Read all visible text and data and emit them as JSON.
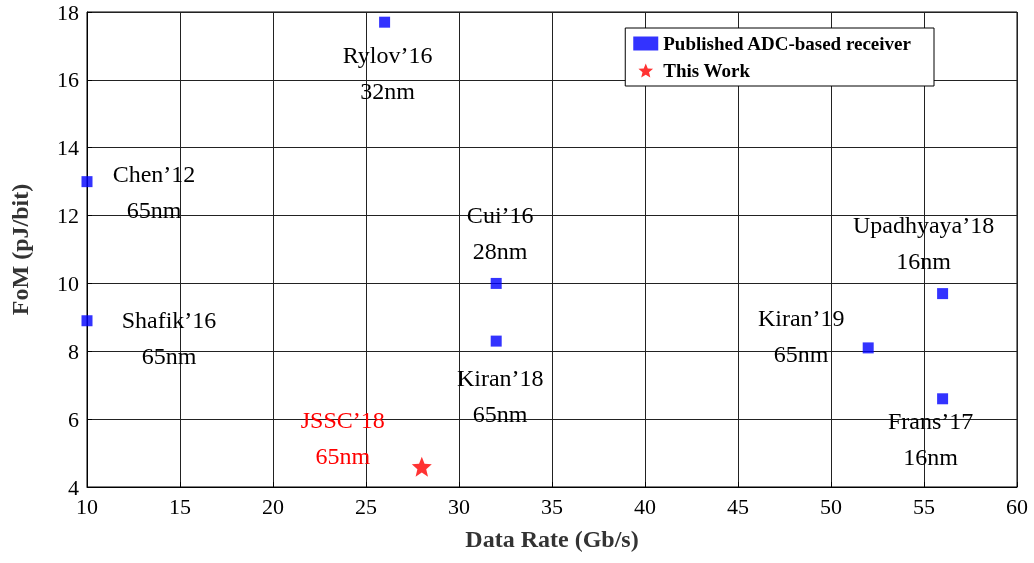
{
  "chart_data": {
    "type": "scatter",
    "xlabel": "Data Rate (Gb/s)",
    "ylabel": "FoM (pJ/bit)",
    "series": [
      {
        "name": "Published ADC-based receiver",
        "color": "#0000ff",
        "marker": "square",
        "x": [
          10,
          10,
          26,
          32,
          32,
          52,
          56,
          56
        ],
        "values": [
          13,
          8.9,
          17.7,
          10,
          8.3,
          8.1,
          9.7,
          6.6
        ]
      },
      {
        "name": "This Work",
        "color": "#ff0000",
        "marker": "star",
        "x": [
          28
        ],
        "values": [
          4.6
        ]
      }
    ],
    "annotations": [
      {
        "text": "Chen’12\n65nm",
        "x": 10,
        "y": 13
      },
      {
        "text": "Shafik’16\n65nm",
        "x": 10,
        "y": 8.9
      },
      {
        "text": "Rylov’16\n32nm",
        "x": 26,
        "y": 17.7
      },
      {
        "text": "Cui’16\n28nm",
        "x": 32,
        "y": 10
      },
      {
        "text": "Kiran’18\n65nm",
        "x": 32,
        "y": 8.3
      },
      {
        "text": "Kiran’19\n65nm",
        "x": 52,
        "y": 8.1
      },
      {
        "text": "Upadhyaya’18\n16nm",
        "x": 56,
        "y": 9.7
      },
      {
        "text": "Frans’17\n16nm",
        "x": 56,
        "y": 6.6
      },
      {
        "text": "JSSC’18\n65nm",
        "x": 28,
        "y": 4.6
      }
    ],
    "xlim": [
      10,
      60
    ],
    "xticks": [
      10,
      15,
      20,
      25,
      30,
      35,
      40,
      45,
      50,
      55,
      60
    ],
    "ylim": [
      4,
      18
    ],
    "yticks": [
      4,
      6,
      8,
      10,
      12,
      14,
      16,
      18
    ],
    "grid": true,
    "legend": "top right"
  }
}
